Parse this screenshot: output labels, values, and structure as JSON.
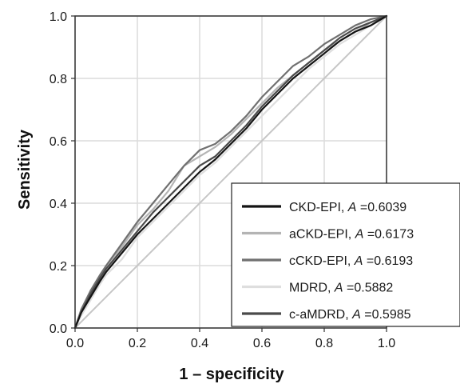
{
  "chart_data": {
    "type": "line",
    "title": "",
    "xlabel": "1 – specificity",
    "ylabel": "Sensitivity",
    "xlim": [
      0.0,
      1.0
    ],
    "ylim": [
      0.0,
      1.0
    ],
    "xticks": [
      "0.0",
      "0.2",
      "0.4",
      "0.6",
      "0.8",
      "1.0"
    ],
    "yticks": [
      "0.0",
      "0.2",
      "0.4",
      "0.6",
      "0.8",
      "1.0"
    ],
    "grid": true,
    "legend_position": "bottom-right",
    "reference_line": {
      "x": [
        0,
        1
      ],
      "y": [
        0,
        1
      ],
      "color": "#c6c6c6"
    },
    "series": [
      {
        "label_name": "CKD-EPI",
        "label_eq": "=0.6039",
        "color": "#141414",
        "x": [
          0,
          0.02,
          0.05,
          0.08,
          0.1,
          0.15,
          0.2,
          0.25,
          0.3,
          0.35,
          0.4,
          0.45,
          0.5,
          0.55,
          0.6,
          0.65,
          0.7,
          0.75,
          0.8,
          0.85,
          0.9,
          0.95,
          1.0
        ],
        "y": [
          0,
          0.05,
          0.1,
          0.15,
          0.18,
          0.24,
          0.3,
          0.35,
          0.4,
          0.45,
          0.5,
          0.54,
          0.59,
          0.64,
          0.7,
          0.75,
          0.8,
          0.84,
          0.88,
          0.92,
          0.95,
          0.97,
          1.0
        ]
      },
      {
        "label_name": "aCKD-EPI",
        "label_eq": "=0.6173",
        "color": "#b4b4b4",
        "x": [
          0,
          0.02,
          0.05,
          0.08,
          0.1,
          0.15,
          0.2,
          0.25,
          0.3,
          0.35,
          0.4,
          0.45,
          0.5,
          0.55,
          0.6,
          0.65,
          0.7,
          0.75,
          0.8,
          0.85,
          0.9,
          0.95,
          1.0
        ],
        "y": [
          0,
          0.05,
          0.12,
          0.16,
          0.2,
          0.26,
          0.33,
          0.38,
          0.44,
          0.52,
          0.55,
          0.58,
          0.62,
          0.67,
          0.72,
          0.77,
          0.81,
          0.85,
          0.89,
          0.92,
          0.95,
          0.98,
          1.0
        ]
      },
      {
        "label_name": "cCKD-EPI",
        "label_eq": "=0.6193",
        "color": "#707070",
        "x": [
          0,
          0.02,
          0.05,
          0.08,
          0.1,
          0.15,
          0.2,
          0.25,
          0.3,
          0.35,
          0.4,
          0.45,
          0.5,
          0.55,
          0.6,
          0.65,
          0.7,
          0.75,
          0.8,
          0.85,
          0.9,
          0.95,
          1.0
        ],
        "y": [
          0,
          0.06,
          0.12,
          0.17,
          0.2,
          0.27,
          0.34,
          0.4,
          0.46,
          0.52,
          0.57,
          0.59,
          0.63,
          0.68,
          0.74,
          0.79,
          0.84,
          0.87,
          0.91,
          0.94,
          0.97,
          0.99,
          1.0
        ]
      },
      {
        "label_name": "MDRD",
        "label_eq": "=0.5882",
        "color": "#dedede",
        "x": [
          0,
          0.02,
          0.05,
          0.08,
          0.1,
          0.15,
          0.2,
          0.25,
          0.3,
          0.35,
          0.4,
          0.45,
          0.5,
          0.55,
          0.6,
          0.65,
          0.7,
          0.75,
          0.8,
          0.85,
          0.9,
          0.95,
          1.0
        ],
        "y": [
          0,
          0.04,
          0.09,
          0.14,
          0.17,
          0.22,
          0.29,
          0.34,
          0.39,
          0.44,
          0.49,
          0.53,
          0.58,
          0.63,
          0.68,
          0.73,
          0.78,
          0.83,
          0.87,
          0.91,
          0.94,
          0.97,
          1.0
        ]
      },
      {
        "label_name": "c-aMDRD",
        "label_eq": "=0.5985",
        "color": "#4a4a4a",
        "x": [
          0,
          0.02,
          0.05,
          0.08,
          0.1,
          0.15,
          0.2,
          0.25,
          0.3,
          0.35,
          0.4,
          0.45,
          0.5,
          0.55,
          0.6,
          0.65,
          0.7,
          0.75,
          0.8,
          0.85,
          0.9,
          0.95,
          1.0
        ],
        "y": [
          0,
          0.05,
          0.11,
          0.16,
          0.19,
          0.25,
          0.31,
          0.37,
          0.42,
          0.47,
          0.52,
          0.55,
          0.6,
          0.65,
          0.71,
          0.76,
          0.81,
          0.85,
          0.89,
          0.93,
          0.96,
          0.98,
          1.0
        ]
      }
    ]
  }
}
